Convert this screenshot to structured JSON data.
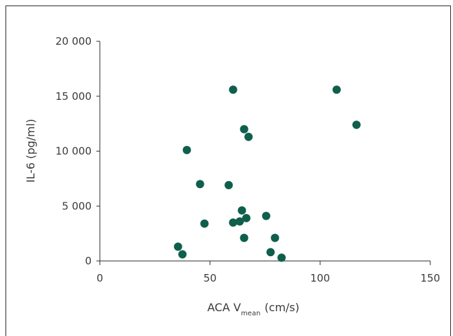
{
  "chart_data": {
    "type": "scatter",
    "xlabel": "ACA V",
    "xlabel_subscript": "mean",
    "xlabel_unit": "(cm/s)",
    "ylabel": "IL-6 (pg/ml)",
    "xlim": [
      0,
      150
    ],
    "ylim": [
      0,
      20000
    ],
    "x_ticks": [
      0,
      50,
      100,
      150
    ],
    "y_ticks": [
      0,
      5000,
      10000,
      15000,
      20000
    ],
    "x_tick_labels": [
      "0",
      "50",
      "100",
      "150"
    ],
    "y_tick_labels": [
      "0",
      "5 000",
      "10 000",
      "15 000",
      "20 000"
    ],
    "grid": false,
    "marker_color": "#0f5f4c",
    "points": [
      {
        "x": 60.5,
        "y": 15600
      },
      {
        "x": 107.5,
        "y": 15600
      },
      {
        "x": 116.5,
        "y": 12400
      },
      {
        "x": 65.5,
        "y": 12000
      },
      {
        "x": 67.5,
        "y": 11300
      },
      {
        "x": 39.5,
        "y": 10100
      },
      {
        "x": 45.5,
        "y": 7000
      },
      {
        "x": 58.5,
        "y": 6900
      },
      {
        "x": 64.5,
        "y": 4600
      },
      {
        "x": 75.5,
        "y": 4100
      },
      {
        "x": 66.5,
        "y": 3900
      },
      {
        "x": 63.5,
        "y": 3600
      },
      {
        "x": 60.5,
        "y": 3500
      },
      {
        "x": 47.5,
        "y": 3400
      },
      {
        "x": 65.5,
        "y": 2100
      },
      {
        "x": 79.5,
        "y": 2100
      },
      {
        "x": 35.5,
        "y": 1300
      },
      {
        "x": 77.5,
        "y": 800
      },
      {
        "x": 37.5,
        "y": 600
      },
      {
        "x": 82.5,
        "y": 300
      }
    ]
  }
}
